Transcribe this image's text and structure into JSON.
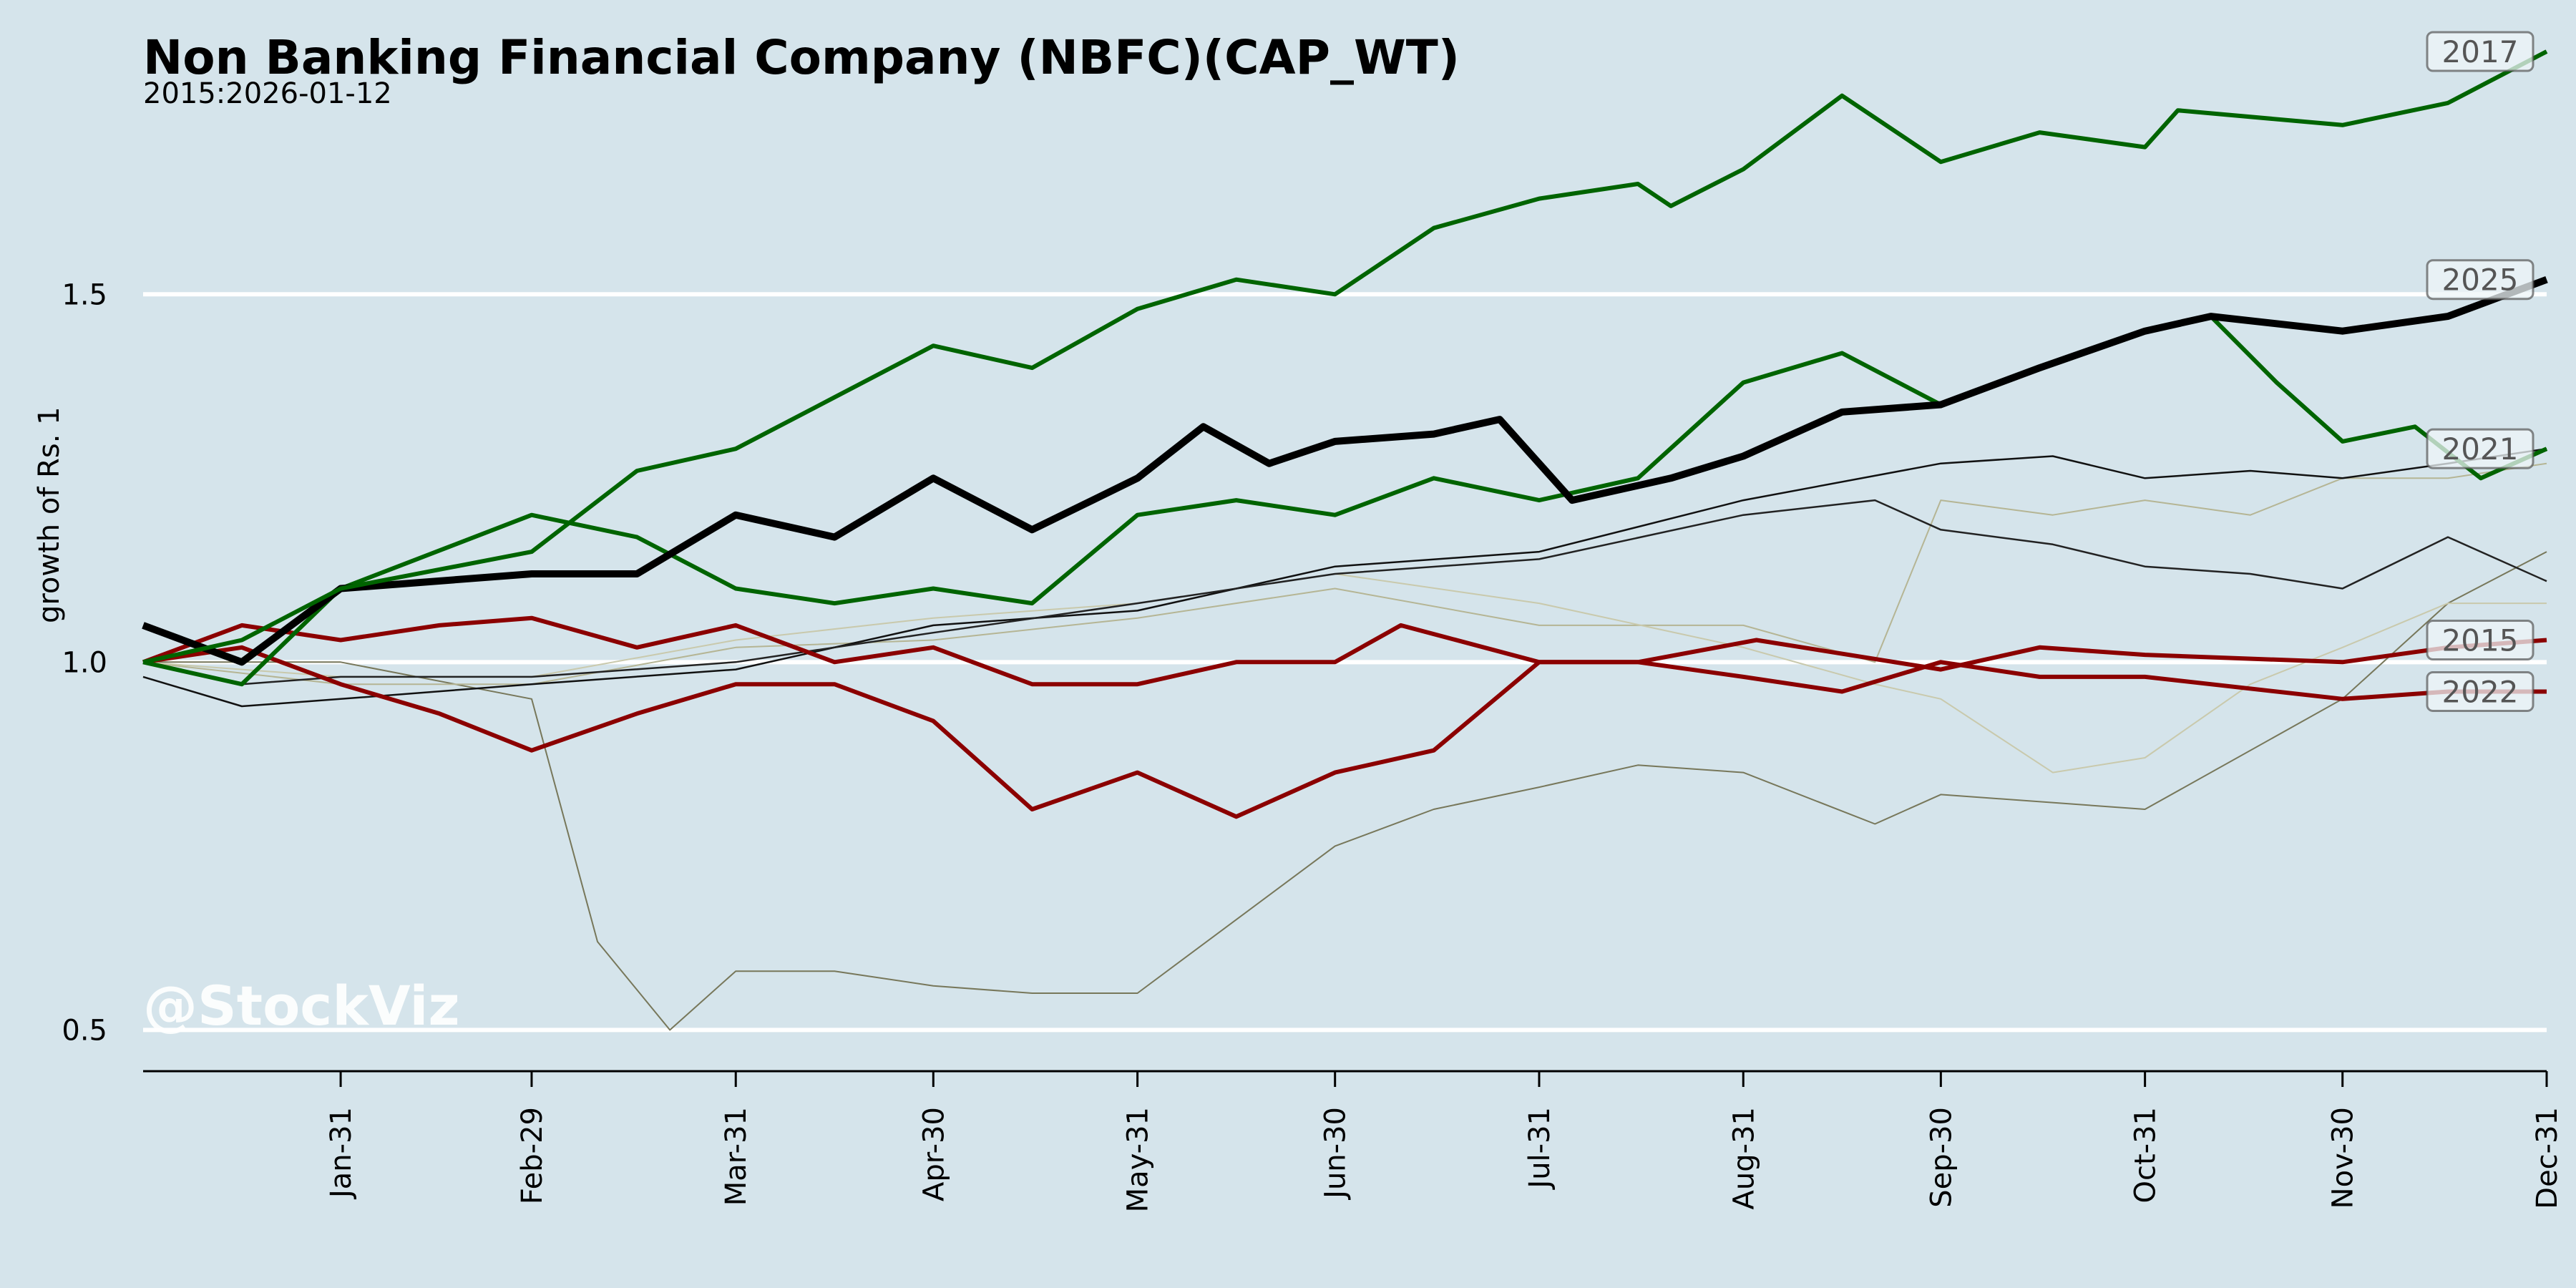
{
  "chart_data": {
    "type": "line",
    "title": "Non Banking Financial Company (NBFC)(CAP_WT)",
    "subtitle": "2015:2026-01-12",
    "ylabel": "growth of Rs. 1",
    "xlabel": "",
    "watermark": "@StockViz",
    "xlim": [
      0,
      365
    ],
    "ylim": [
      0.444,
      1.9
    ],
    "yticks": [
      0.5,
      1.0,
      1.5
    ],
    "ytick_labels": [
      "0.5",
      "1.0",
      "1.5"
    ],
    "xticks": [
      30,
      59,
      90,
      120,
      151,
      181,
      212,
      243,
      273,
      304,
      334,
      365
    ],
    "xtick_labels": [
      "Jan-31",
      "Feb-29",
      "Mar-31",
      "Apr-30",
      "May-31",
      "Jun-30",
      "Jul-31",
      "Aug-31",
      "Sep-30",
      "Oct-31",
      "Nov-30",
      "Dec-31"
    ],
    "grid": "horizontal",
    "series": [
      {
        "name": "unlabeled-olive",
        "label": "",
        "color": "#77775a",
        "width": 2,
        "x": [
          0,
          30,
          59,
          69,
          80,
          90,
          105,
          120,
          135,
          151,
          166,
          181,
          196,
          212,
          227,
          243,
          263,
          273,
          304,
          334,
          350,
          365
        ],
        "y": [
          1.0,
          1.0,
          0.95,
          0.62,
          0.5,
          0.58,
          0.58,
          0.56,
          0.55,
          0.55,
          0.65,
          0.75,
          0.8,
          0.83,
          0.86,
          0.85,
          0.78,
          0.82,
          0.8,
          0.95,
          1.08,
          1.15
        ]
      },
      {
        "name": "unlabeled-pale-1",
        "label": "",
        "color": "#b5b594",
        "width": 2,
        "x": [
          0,
          30,
          59,
          90,
          120,
          151,
          181,
          212,
          243,
          263,
          273,
          290,
          304,
          320,
          334,
          350,
          365
        ],
        "y": [
          1.0,
          0.97,
          0.97,
          1.02,
          1.03,
          1.06,
          1.1,
          1.05,
          1.05,
          1.0,
          1.22,
          1.2,
          1.22,
          1.2,
          1.25,
          1.25,
          1.27
        ]
      },
      {
        "name": "unlabeled-pale-2",
        "label": "",
        "color": "#c9c9ac",
        "width": 2,
        "x": [
          0,
          30,
          59,
          90,
          120,
          151,
          181,
          212,
          243,
          263,
          273,
          290,
          304,
          320,
          334,
          350,
          365
        ],
        "y": [
          1.0,
          0.98,
          0.98,
          1.03,
          1.06,
          1.08,
          1.12,
          1.08,
          1.02,
          0.97,
          0.95,
          0.85,
          0.87,
          0.97,
          1.02,
          1.08,
          1.08
        ]
      },
      {
        "name": "unlabeled-black-1",
        "label": "",
        "color": "#111111",
        "width": 2.5,
        "x": [
          0,
          15,
          30,
          59,
          90,
          120,
          151,
          181,
          212,
          243,
          273,
          290,
          304,
          320,
          334,
          350,
          365
        ],
        "y": [
          0.98,
          0.94,
          0.95,
          0.97,
          0.99,
          1.05,
          1.07,
          1.13,
          1.15,
          1.22,
          1.27,
          1.28,
          1.25,
          1.26,
          1.25,
          1.27,
          1.29
        ]
      },
      {
        "name": "unlabeled-black-2",
        "label": "",
        "color": "#222222",
        "width": 2.5,
        "x": [
          0,
          15,
          30,
          59,
          90,
          120,
          151,
          181,
          212,
          243,
          263,
          273,
          290,
          304,
          320,
          334,
          350,
          365
        ],
        "y": [
          1.0,
          0.97,
          0.98,
          0.98,
          1.0,
          1.04,
          1.08,
          1.12,
          1.14,
          1.2,
          1.22,
          1.18,
          1.16,
          1.13,
          1.12,
          1.1,
          1.17,
          1.11
        ]
      },
      {
        "name": "2022",
        "label": "2022",
        "color": "#8b0000",
        "width": 6,
        "x": [
          0,
          15,
          30,
          45,
          59,
          75,
          90,
          105,
          120,
          135,
          151,
          166,
          181,
          196,
          212,
          227,
          243,
          258,
          273,
          288,
          304,
          334,
          350,
          365
        ],
        "y": [
          1.0,
          1.02,
          0.97,
          0.93,
          0.88,
          0.93,
          0.97,
          0.97,
          0.92,
          0.8,
          0.85,
          0.79,
          0.85,
          0.88,
          1.0,
          1.0,
          0.98,
          0.96,
          1.0,
          0.98,
          0.98,
          0.95,
          0.96,
          0.96
        ]
      },
      {
        "name": "2015",
        "label": "2015",
        "color": "#8b0000",
        "width": 6,
        "x": [
          0,
          15,
          30,
          45,
          59,
          75,
          90,
          105,
          120,
          135,
          151,
          166,
          181,
          191,
          212,
          227,
          245,
          273,
          288,
          304,
          334,
          350,
          365
        ],
        "y": [
          1.0,
          1.05,
          1.03,
          1.05,
          1.06,
          1.02,
          1.05,
          1.0,
          1.02,
          0.97,
          0.97,
          1.0,
          1.0,
          1.05,
          1.0,
          1.0,
          1.03,
          0.99,
          1.02,
          1.01,
          1.0,
          1.02,
          1.03
        ]
      },
      {
        "name": "2021",
        "label": "2021",
        "color": "#006400",
        "width": 6,
        "x": [
          0,
          15,
          30,
          59,
          75,
          90,
          105,
          120,
          135,
          151,
          166,
          181,
          196,
          212,
          227,
          243,
          258,
          273,
          288,
          304,
          314,
          324,
          334,
          345,
          355,
          365
        ],
        "y": [
          1.0,
          0.97,
          1.1,
          1.2,
          1.17,
          1.1,
          1.08,
          1.1,
          1.08,
          1.2,
          1.22,
          1.2,
          1.25,
          1.22,
          1.25,
          1.38,
          1.42,
          1.35,
          1.4,
          1.45,
          1.47,
          1.38,
          1.3,
          1.32,
          1.25,
          1.29
        ]
      },
      {
        "name": "2025",
        "label": "2025",
        "color": "#000000",
        "width": 10,
        "x": [
          0,
          15,
          30,
          59,
          75,
          90,
          105,
          120,
          135,
          151,
          161,
          171,
          181,
          196,
          206,
          217,
          232,
          243,
          258,
          273,
          288,
          304,
          314,
          334,
          350,
          365
        ],
        "y": [
          1.05,
          1.0,
          1.1,
          1.12,
          1.12,
          1.2,
          1.17,
          1.25,
          1.18,
          1.25,
          1.32,
          1.27,
          1.3,
          1.31,
          1.33,
          1.22,
          1.25,
          1.28,
          1.34,
          1.35,
          1.4,
          1.45,
          1.47,
          1.45,
          1.47,
          1.52
        ]
      },
      {
        "name": "2017",
        "label": "2017",
        "color": "#006400",
        "width": 6,
        "x": [
          0,
          15,
          30,
          59,
          75,
          90,
          105,
          120,
          135,
          151,
          166,
          181,
          196,
          212,
          227,
          232,
          243,
          258,
          273,
          288,
          304,
          309,
          334,
          350,
          365
        ],
        "y": [
          1.0,
          1.03,
          1.1,
          1.15,
          1.26,
          1.29,
          1.36,
          1.43,
          1.4,
          1.48,
          1.52,
          1.5,
          1.59,
          1.63,
          1.65,
          1.62,
          1.67,
          1.77,
          1.68,
          1.72,
          1.7,
          1.75,
          1.73,
          1.76,
          1.83
        ]
      }
    ]
  }
}
